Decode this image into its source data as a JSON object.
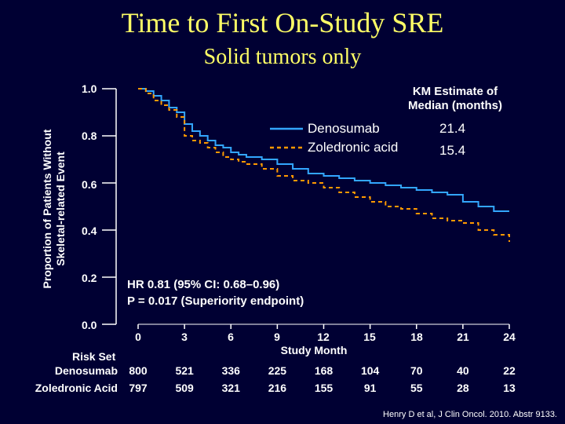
{
  "chart_data": {
    "type": "line",
    "title": "Time to First On-Study SRE",
    "subtitle": "Solid tumors only",
    "ylabel_line1": "Proportion of Patients Without",
    "ylabel_line2": "Skeletal-related Event",
    "xlabel": "Study Month",
    "xlim": [
      0,
      24
    ],
    "ylim": [
      0,
      1.0
    ],
    "x_ticks": [
      "0",
      "3",
      "6",
      "9",
      "12",
      "15",
      "18",
      "21",
      "24"
    ],
    "y_ticks": [
      "0.0",
      "0.2",
      "0.4",
      "0.6",
      "0.8",
      "1.0"
    ],
    "legend_title_line1": "KM Estimate of",
    "legend_title_line2": "Median (months)",
    "series": [
      {
        "name": "Denosumab",
        "median": "21.4",
        "color": "#33a6ff",
        "style": "solid",
        "x": [
          0,
          0.5,
          1,
          1.5,
          2,
          2.5,
          3,
          3.5,
          4,
          4.5,
          5,
          5.5,
          6,
          6.5,
          7,
          8,
          9,
          10,
          11,
          12,
          13,
          14,
          15,
          16,
          17,
          18,
          19,
          20,
          21,
          22,
          23,
          24
        ],
        "y": [
          1.0,
          0.99,
          0.97,
          0.95,
          0.92,
          0.9,
          0.85,
          0.82,
          0.8,
          0.78,
          0.76,
          0.75,
          0.73,
          0.72,
          0.71,
          0.7,
          0.68,
          0.66,
          0.64,
          0.63,
          0.62,
          0.61,
          0.6,
          0.59,
          0.58,
          0.57,
          0.56,
          0.55,
          0.52,
          0.5,
          0.48,
          0.48
        ]
      },
      {
        "name": "Zoledronic acid",
        "median": "15.4",
        "color": "#ff9900",
        "style": "dashed",
        "x": [
          0,
          0.5,
          1,
          1.5,
          2,
          2.5,
          3,
          3.5,
          4,
          4.5,
          5,
          5.5,
          6,
          6.5,
          7,
          8,
          9,
          10,
          11,
          12,
          13,
          14,
          15,
          16,
          17,
          18,
          19,
          20,
          21,
          22,
          23,
          24
        ],
        "y": [
          1.0,
          0.98,
          0.95,
          0.93,
          0.91,
          0.88,
          0.8,
          0.78,
          0.77,
          0.75,
          0.73,
          0.71,
          0.7,
          0.69,
          0.68,
          0.66,
          0.63,
          0.61,
          0.6,
          0.58,
          0.56,
          0.54,
          0.52,
          0.5,
          0.49,
          0.47,
          0.45,
          0.44,
          0.43,
          0.4,
          0.38,
          0.35
        ]
      }
    ],
    "annotations": {
      "hr": "HR 0.81 (95% CI: 0.68–0.96)",
      "p": "P = 0.017 (Superiority endpoint)"
    },
    "risk_set": {
      "title": "Risk Set",
      "rows": [
        {
          "name": "Denosumab",
          "values": [
            "800",
            "521",
            "336",
            "225",
            "168",
            "104",
            "70",
            "40",
            "22"
          ]
        },
        {
          "name": "Zoledronic Acid",
          "values": [
            "797",
            "509",
            "321",
            "216",
            "155",
            "91",
            "55",
            "28",
            "13"
          ]
        }
      ]
    },
    "citation": "Henry D et al, J Clin Oncol. 2010. Abstr 9133."
  }
}
